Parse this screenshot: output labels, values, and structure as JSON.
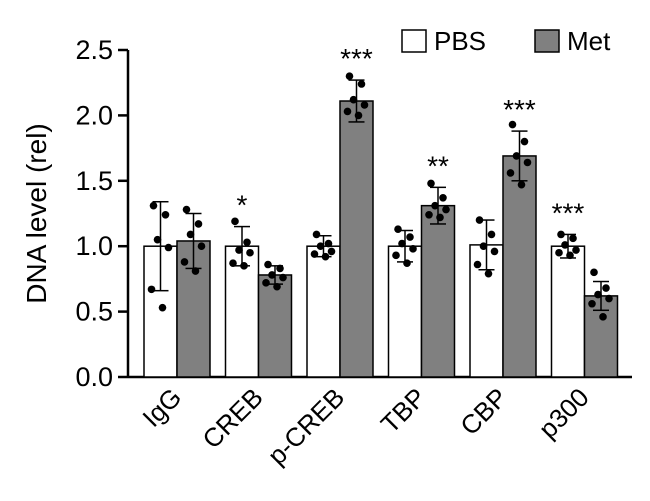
{
  "chart_data": {
    "type": "bar",
    "title": "",
    "xlabel": "",
    "ylabel": "DNA level (rel)",
    "ylim": [
      0,
      2.5
    ],
    "yticks": [
      "0.0",
      "0.5",
      "1.0",
      "1.5",
      "2.0",
      "2.5"
    ],
    "categories": [
      "IgG",
      "CREB",
      "p-CREB",
      "TBP",
      "CBP",
      "p300"
    ],
    "legend_position": "top-right",
    "series": [
      {
        "name": "PBS",
        "color": "#ffffff",
        "values": [
          1.0,
          1.0,
          1.0,
          1.0,
          1.01,
          1.0
        ],
        "errors": [
          0.34,
          0.15,
          0.08,
          0.12,
          0.19,
          0.09
        ],
        "points": [
          [
            1.31,
            1.24,
            1.05,
            0.99,
            0.67,
            0.53
          ],
          [
            1.19,
            1.03,
            0.97,
            0.95,
            0.87,
            0.85
          ],
          [
            1.09,
            1.02,
            1.0,
            0.96,
            0.94,
            0.92
          ],
          [
            1.13,
            1.07,
            1.02,
            0.98,
            0.93,
            0.87
          ],
          [
            1.2,
            1.09,
            1.0,
            0.96,
            0.86,
            0.79
          ],
          [
            1.09,
            1.06,
            1.01,
            0.97,
            0.95,
            0.93
          ]
        ]
      },
      {
        "name": "Met",
        "color": "#808080",
        "values": [
          1.04,
          0.78,
          2.11,
          1.31,
          1.69,
          0.62
        ],
        "errors": [
          0.21,
          0.07,
          0.16,
          0.14,
          0.19,
          0.11
        ],
        "points": [
          [
            1.28,
            1.17,
            1.09,
            1.0,
            0.88,
            0.81
          ],
          [
            0.86,
            0.83,
            0.78,
            0.76,
            0.72,
            0.69
          ],
          [
            2.3,
            2.24,
            2.12,
            2.08,
            2.03,
            2.0
          ],
          [
            1.48,
            1.37,
            1.31,
            1.28,
            1.24,
            1.22
          ],
          [
            1.93,
            1.8,
            1.69,
            1.64,
            1.56,
            1.47
          ],
          [
            0.8,
            0.68,
            0.63,
            0.6,
            0.56,
            0.46
          ]
        ]
      }
    ],
    "significance": [
      "",
      "*",
      "***",
      "**",
      "***",
      "***"
    ]
  }
}
